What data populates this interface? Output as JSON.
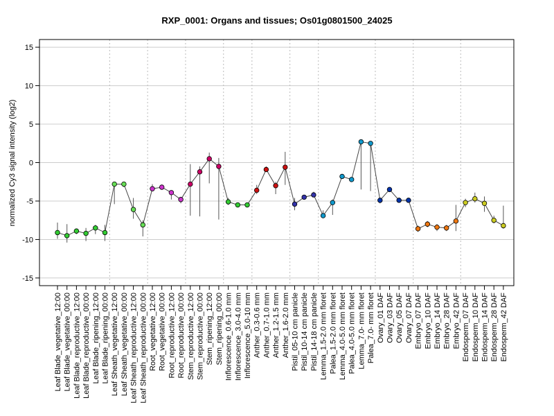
{
  "chart_data": {
    "type": "line",
    "title": "RXP_0001: Organs and tissues; Os01g0801500_24025",
    "xlabel": "",
    "ylabel": "normalized Cy3 signal intensity (log2)",
    "ylim": [
      -16,
      16
    ],
    "yticks": [
      -15,
      -10,
      -5,
      0,
      5,
      10,
      15
    ],
    "grid": true,
    "legend": "none",
    "line_color": "#444444",
    "errorbar_color": "#555555",
    "categories": [
      "Leaf Blade_vegetative_12:00",
      "Leaf Blade_vegetative_00:00",
      "Leaf Blade_reproductive_12:00",
      "Leaf Blade_reproductive_00:00",
      "Leaf Blade_ripening_12:00",
      "Leaf Blade_ripening_00:00",
      "Leaf Sheath_vegetative_12:00",
      "Leaf Sheath_vegetative_00:00",
      "Leaf Sheath_reproductive_12:00",
      "Leaf Sheath_reproductive_00:00",
      "Root_vegetative_12:00",
      "Root_vegetative_00:00",
      "Root_reproductive_12:00",
      "Root_reproductive_00:00",
      "Stem_reproductive_12:00",
      "Stem_reproductive_00:00",
      "Stem_ripening_12:00",
      "Stem_ripening_00:00",
      "Inflorescence_0.6-1.0 mm",
      "Inflorescence_3.0-4.0 mm",
      "Inflorescence_5.0-10 mm",
      "Anther_0.3-0.6 mm",
      "Anther_0.7-1.0 mm",
      "Anther_1.2-1.5 mm",
      "Anther_1.6-2.0 mm",
      "Pistil_05-10 cm panicle",
      "Pistil_10-14 cm panicle",
      "Pistil_14-18 cm panicle",
      "Lemma_1.5-2.0 mm floret",
      "Palea_1.5-2.0 mm floret",
      "Lemma_4.0-5.0 mm floret",
      "Palea_4.0-5.0 mm floret",
      "Lemma_7.0- mm floret",
      "Palea_7.0- mm floret",
      "Ovary_01 DAF",
      "Ovary_03 DAF",
      "Ovary_05 DAF",
      "Ovary_07 DAF",
      "Embryo_07 DAF",
      "Embryo_10 DAF",
      "Embryo_14 DAF",
      "Embryo_28 DAF",
      "Embryo_42 DAF",
      "Endosperm_07 DAF",
      "Endosperm_10 DAF",
      "Endosperm_14 DAF",
      "Endosperm_28 DAF",
      "Endosperm_42 DAF"
    ],
    "values": [
      -9.1,
      -9.5,
      -8.9,
      -9.2,
      -8.5,
      -9.1,
      -2.8,
      -2.8,
      -6.1,
      -8.1,
      -3.4,
      -3.2,
      -3.9,
      -4.8,
      -2.8,
      -1.2,
      0.5,
      -0.5,
      -5.1,
      -5.5,
      -5.5,
      -3.6,
      -0.9,
      -3.0,
      -0.6,
      -5.4,
      -4.5,
      -4.2,
      -6.9,
      -5.2,
      -1.8,
      -2.2,
      2.7,
      2.5,
      -4.9,
      -3.5,
      -4.9,
      -4.9,
      -8.6,
      -8.0,
      -8.4,
      -8.5,
      -7.6,
      -5.2,
      -4.7,
      -5.3,
      -7.5,
      -8.2
    ],
    "error_low": [
      -9.9,
      -10.4,
      -9.3,
      -10.2,
      -9.3,
      -10.2,
      -5.4,
      -3.2,
      -7.3,
      -9.6,
      -3.7,
      -3.5,
      -4.8,
      -5.3,
      -6.9,
      -7.0,
      -2.7,
      -7.4,
      -5.5,
      -5.7,
      -5.7,
      -4.1,
      -1.2,
      -4.1,
      -2.9,
      -6.2,
      -4.8,
      -4.5,
      -7.2,
      -6.8,
      -2.0,
      -2.5,
      -3.5,
      -3.7,
      -5.3,
      -3.8,
      -5.1,
      -5.2,
      -9.0,
      -8.4,
      -8.9,
      -8.9,
      -8.9,
      -5.8,
      -5.2,
      -6.4,
      -7.9,
      -8.6
    ],
    "error_high": [
      -7.8,
      -8.0,
      -8.6,
      -8.5,
      -8.1,
      -8.1,
      -2.5,
      -2.6,
      -4.6,
      -7.5,
      -2.8,
      -2.9,
      -3.7,
      -4.6,
      -0.2,
      -0.5,
      1.3,
      0.6,
      -4.6,
      -5.2,
      -5.3,
      -2.9,
      -0.5,
      -2.5,
      1.4,
      -4.6,
      -4.2,
      -3.8,
      -6.2,
      -4.8,
      -1.5,
      -1.9,
      2.9,
      2.7,
      -4.6,
      -3.2,
      -4.7,
      -4.6,
      -8.2,
      -7.6,
      -8.0,
      -8.1,
      -5.5,
      -4.7,
      -3.9,
      -4.4,
      -6.9,
      -5.6
    ],
    "colors": [
      "#33cc33",
      "#33cc33",
      "#33cc33",
      "#33cc33",
      "#33cc33",
      "#33cc33",
      "#66dd55",
      "#66dd55",
      "#66dd55",
      "#66dd55",
      "#cc33cc",
      "#cc33cc",
      "#cc33cc",
      "#cc33cc",
      "#cc0066",
      "#cc0066",
      "#cc0066",
      "#cc0066",
      "#33cc33",
      "#33cc33",
      "#33cc33",
      "#cc1111",
      "#cc1111",
      "#cc1111",
      "#cc1111",
      "#3333aa",
      "#3333aa",
      "#3333aa",
      "#1199cc",
      "#1199cc",
      "#1199cc",
      "#1199cc",
      "#1199cc",
      "#1199cc",
      "#0033aa",
      "#0033aa",
      "#0033aa",
      "#0033aa",
      "#ee7711",
      "#ee7711",
      "#ee7711",
      "#ee7711",
      "#ee7711",
      "#cccc22",
      "#cccc22",
      "#cccc22",
      "#cccc22",
      "#cccc22"
    ],
    "group_separators_after": [
      5,
      9,
      13,
      17,
      20,
      24,
      27,
      33,
      37,
      42
    ]
  }
}
